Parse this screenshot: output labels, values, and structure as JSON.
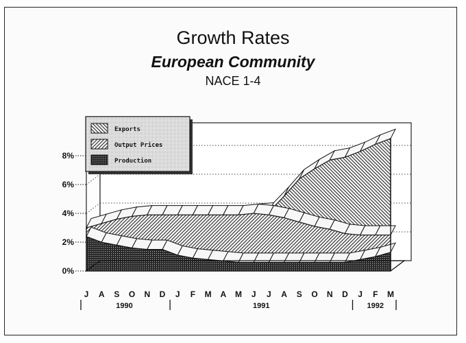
{
  "header": {
    "title": "Growth Rates",
    "subtitle": "European Community",
    "note": "NACE 1-4"
  },
  "chart_data": {
    "type": "area",
    "title": "Growth Rates",
    "subtitle": "European Community",
    "note": "NACE 1-4",
    "stacked": true,
    "x": [
      "J",
      "A",
      "S",
      "O",
      "N",
      "D",
      "J",
      "F",
      "M",
      "A",
      "M",
      "J",
      "J",
      "A",
      "S",
      "O",
      "N",
      "D",
      "J",
      "F",
      "M"
    ],
    "year_groups": [
      {
        "label": "1990",
        "start": 0,
        "end": 5
      },
      {
        "label": "1991",
        "start": 6,
        "end": 17
      },
      {
        "label": "1992",
        "start": 18,
        "end": 20
      }
    ],
    "y_ticks": [
      "0%",
      "2%",
      "4%",
      "6%",
      "8%"
    ],
    "ylim": [
      0,
      9
    ],
    "legend_position": "top-left",
    "series": [
      {
        "name": "Production",
        "pattern": "dense-dots",
        "values": [
          2.4,
          2.0,
          1.8,
          1.6,
          1.5,
          1.5,
          1.1,
          0.9,
          0.8,
          0.7,
          0.6,
          0.6,
          0.6,
          0.6,
          0.6,
          0.6,
          0.6,
          0.6,
          0.8,
          1.0,
          1.3
        ]
      },
      {
        "name": "Output Prices",
        "pattern": "diagonal-hatch",
        "values": [
          0.6,
          1.3,
          1.8,
          2.2,
          2.4,
          2.4,
          2.8,
          3.0,
          3.1,
          3.2,
          3.3,
          3.4,
          3.3,
          3.1,
          2.8,
          2.5,
          2.3,
          2.0,
          1.7,
          1.5,
          1.2
        ]
      },
      {
        "name": "Exports",
        "pattern": "reverse-hatch",
        "values": [
          0,
          0,
          0,
          0,
          0,
          0,
          0,
          0,
          0,
          0,
          0,
          0,
          0.2,
          1.5,
          3.0,
          4.0,
          4.8,
          5.3,
          5.8,
          6.3,
          6.7
        ]
      }
    ]
  }
}
